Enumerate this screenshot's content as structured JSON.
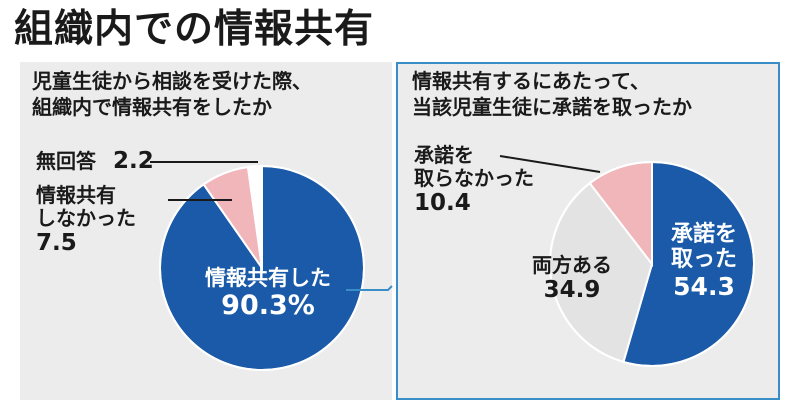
{
  "title": "組織内での情報共有",
  "colors": {
    "primary": "#1a5aa8",
    "secondary": "#e3e3e3",
    "tertiary": "#f0b6ba",
    "other": "#ffffff",
    "frame": "#3a8ec8",
    "panel": "#ececec"
  },
  "left": {
    "question": [
      "児童生徒から相談を受けた際、",
      "組織内で情報共有をしたか"
    ],
    "labels": {
      "shared": [
        "情報共有した",
        "90.3%"
      ],
      "not_shared": [
        "情報共有",
        "しなかった",
        "7.5"
      ],
      "no_answer": [
        "無回答",
        "2.2"
      ]
    }
  },
  "right": {
    "question": [
      "情報共有するにあたって、",
      "当該児童生徒に承諾を取ったか"
    ],
    "labels": {
      "consent": [
        "承諾を",
        "取った",
        "54.3"
      ],
      "both": [
        "両方ある",
        "34.9"
      ],
      "no_consent": [
        "承諾を",
        "取らなかった",
        "10.4"
      ]
    }
  },
  "chart_data": [
    {
      "type": "pie",
      "title": "児童生徒から相談を受けた際、組織内で情報共有をしたか",
      "categories": [
        "情報共有した",
        "情報共有しなかった",
        "無回答"
      ],
      "values": [
        90.3,
        7.5,
        2.2
      ],
      "unit": "%"
    },
    {
      "type": "pie",
      "title": "情報共有するにあたって、当該児童生徒に承諾を取ったか",
      "categories": [
        "承諾を取った",
        "両方ある",
        "承諾を取らなかった"
      ],
      "values": [
        54.3,
        34.9,
        10.4
      ],
      "unit": "%"
    }
  ]
}
